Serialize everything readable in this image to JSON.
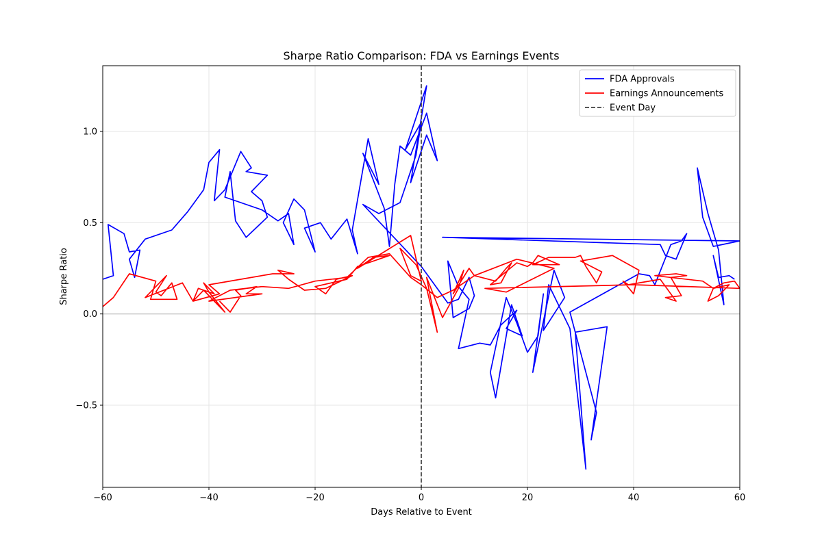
{
  "chart_data": {
    "type": "line",
    "title": "Sharpe Ratio Comparison: FDA vs Earnings Events",
    "xlabel": "Days Relative to Event",
    "ylabel": "Sharpe Ratio",
    "xlim": [
      -60,
      60
    ],
    "ylim": [
      -0.95,
      1.36
    ],
    "xticks": [
      -60,
      -40,
      -20,
      0,
      20,
      40,
      60
    ],
    "xtick_labels": [
      "−60",
      "−40",
      "−20",
      "0",
      "20",
      "40",
      "60"
    ],
    "yticks": [
      -0.5,
      0.0,
      0.5,
      1.0
    ],
    "ytick_labels": [
      "−0.5",
      "0.0",
      "0.5",
      "1.0"
    ],
    "grid": true,
    "legend_position": "top-right",
    "reference_lines": [
      {
        "type": "vertical",
        "x": 0,
        "label": "Event Day",
        "color": "#404040",
        "style": "dashed"
      },
      {
        "type": "horizontal",
        "y": 0,
        "color": "#bbbbbb",
        "style": "solid"
      }
    ],
    "series": [
      {
        "name": "FDA Approvals",
        "color": "#0000ff",
        "points": [
          [
            -60,
            0.19
          ],
          [
            -58,
            0.21
          ],
          [
            -59,
            0.49
          ],
          [
            -56,
            0.44
          ],
          [
            -55,
            0.34
          ],
          [
            -53,
            0.35
          ],
          [
            -54,
            0.2
          ],
          [
            -55,
            0.3
          ],
          [
            -52,
            0.41
          ],
          [
            -47,
            0.46
          ],
          [
            -44,
            0.56
          ],
          [
            -41,
            0.68
          ],
          [
            -40,
            0.83
          ],
          [
            -38,
            0.9
          ],
          [
            -39,
            0.62
          ],
          [
            -37,
            0.68
          ],
          [
            -34,
            0.89
          ],
          [
            -32,
            0.8
          ],
          [
            -33,
            0.78
          ],
          [
            -29,
            0.76
          ],
          [
            -32,
            0.67
          ],
          [
            -30,
            0.62
          ],
          [
            -29,
            0.53
          ],
          [
            -33,
            0.42
          ],
          [
            -35,
            0.51
          ],
          [
            -36,
            0.78
          ],
          [
            -37,
            0.64
          ],
          [
            -30,
            0.57
          ],
          [
            -27,
            0.51
          ],
          [
            -25,
            0.55
          ],
          [
            -24,
            0.38
          ],
          [
            -26,
            0.5
          ],
          [
            -24,
            0.63
          ],
          [
            -22,
            0.57
          ],
          [
            -20,
            0.34
          ],
          [
            -22,
            0.47
          ],
          [
            -19,
            0.5
          ],
          [
            -17,
            0.41
          ],
          [
            -14,
            0.52
          ],
          [
            -12,
            0.33
          ],
          [
            -13,
            0.46
          ],
          [
            -10,
            0.96
          ],
          [
            -8,
            0.71
          ],
          [
            -11,
            0.88
          ],
          [
            -7,
            0.58
          ],
          [
            -6,
            0.37
          ],
          [
            -5,
            0.71
          ],
          [
            -4,
            0.92
          ],
          [
            -2,
            0.87
          ],
          [
            1,
            1.1
          ],
          [
            3,
            0.84
          ],
          [
            1,
            0.98
          ],
          [
            -2,
            0.72
          ],
          [
            1,
            1.25
          ],
          [
            -3,
            0.9
          ],
          [
            0,
            1.05
          ],
          [
            -1,
            0.87
          ],
          [
            -4,
            0.61
          ],
          [
            -8,
            0.55
          ],
          [
            -11,
            0.6
          ],
          [
            0,
            0.26
          ],
          [
            5,
            0.06
          ],
          [
            7,
            0.08
          ],
          [
            9,
            0.2
          ],
          [
            10,
            0.1
          ],
          [
            9,
            0.03
          ],
          [
            6,
            -0.02
          ],
          [
            5,
            0.29
          ],
          [
            7,
            0.15
          ],
          [
            9,
            0.08
          ],
          [
            7,
            -0.19
          ],
          [
            11,
            -0.16
          ],
          [
            13,
            -0.17
          ],
          [
            15,
            -0.06
          ],
          [
            18,
            0.02
          ],
          [
            16,
            -0.08
          ],
          [
            19,
            -0.12
          ],
          [
            17,
            0.05
          ],
          [
            14,
            -0.46
          ],
          [
            13,
            -0.32
          ],
          [
            16,
            0.09
          ],
          [
            18,
            -0.05
          ],
          [
            20,
            -0.21
          ],
          [
            22,
            -0.12
          ],
          [
            23,
            0.11
          ],
          [
            21,
            -0.32
          ],
          [
            25,
            0.24
          ],
          [
            27,
            0.09
          ],
          [
            23,
            -0.09
          ],
          [
            24,
            0.16
          ],
          [
            26,
            0.04
          ],
          [
            28,
            -0.08
          ],
          [
            31,
            -0.85
          ],
          [
            29,
            -0.1
          ],
          [
            35,
            -0.07
          ],
          [
            32,
            -0.69
          ],
          [
            33,
            -0.54
          ],
          [
            28,
            0.01
          ],
          [
            41,
            0.22
          ],
          [
            43,
            0.21
          ],
          [
            44,
            0.16
          ],
          [
            47,
            0.38
          ],
          [
            49,
            0.4
          ],
          [
            50,
            0.44
          ],
          [
            48,
            0.3
          ],
          [
            46,
            0.32
          ],
          [
            45,
            0.38
          ],
          [
            4,
            0.42
          ],
          [
            60,
            0.4
          ],
          [
            55,
            0.37
          ],
          [
            53,
            0.53
          ],
          [
            52,
            0.8
          ],
          [
            54,
            0.55
          ],
          [
            56,
            0.35
          ],
          [
            57,
            0.05
          ],
          [
            55,
            0.32
          ],
          [
            56,
            0.2
          ],
          [
            58,
            0.21
          ],
          [
            59,
            0.19
          ]
        ]
      },
      {
        "name": "Earnings Announcements",
        "color": "#ff0000",
        "points": [
          [
            -60,
            0.04
          ],
          [
            -58,
            0.09
          ],
          [
            -55,
            0.22
          ],
          [
            -50,
            0.18
          ],
          [
            -51,
            0.08
          ],
          [
            -46,
            0.08
          ],
          [
            -47,
            0.17
          ],
          [
            -49,
            0.1
          ],
          [
            -50,
            0.12
          ],
          [
            -48,
            0.21
          ],
          [
            -52,
            0.09
          ],
          [
            -45,
            0.17
          ],
          [
            -43,
            0.07
          ],
          [
            -41,
            0.13
          ],
          [
            -37,
            0.01
          ],
          [
            -40,
            0.12
          ],
          [
            -41,
            0.17
          ],
          [
            -39,
            0.11
          ],
          [
            -42,
            0.14
          ],
          [
            -43,
            0.07
          ],
          [
            -38,
            0.11
          ],
          [
            -40,
            0.16
          ],
          [
            -28,
            0.22
          ],
          [
            -24,
            0.22
          ],
          [
            -27,
            0.24
          ],
          [
            -25,
            0.19
          ],
          [
            -22,
            0.13
          ],
          [
            -18,
            0.14
          ],
          [
            -13,
            0.21
          ],
          [
            -16,
            0.19
          ],
          [
            -18,
            0.11
          ],
          [
            -20,
            0.15
          ],
          [
            -14,
            0.19
          ],
          [
            -12,
            0.26
          ],
          [
            -8,
            0.3
          ],
          [
            -6,
            0.32
          ],
          [
            -9,
            0.31
          ],
          [
            -12,
            0.25
          ],
          [
            -2,
            0.43
          ],
          [
            0,
            0.18
          ],
          [
            -2,
            0.21
          ],
          [
            -4,
            0.36
          ],
          [
            -1,
            0.27
          ],
          [
            1,
            0.14
          ],
          [
            3,
            -0.1
          ],
          [
            1,
            0.2
          ],
          [
            4,
            -0.02
          ],
          [
            7,
            0.14
          ],
          [
            8,
            0.24
          ],
          [
            6,
            0.11
          ],
          [
            9,
            0.25
          ],
          [
            10,
            0.21
          ],
          [
            14,
            0.18
          ],
          [
            16,
            0.25
          ],
          [
            17,
            0.28
          ],
          [
            15,
            0.17
          ],
          [
            13,
            0.16
          ],
          [
            18,
            0.28
          ],
          [
            20,
            0.26
          ],
          [
            21,
            0.28
          ],
          [
            22,
            0.32
          ],
          [
            26,
            0.27
          ],
          [
            21,
            0.27
          ],
          [
            24,
            0.31
          ],
          [
            29,
            0.31
          ],
          [
            30,
            0.32
          ],
          [
            31,
            0.26
          ],
          [
            33,
            0.17
          ],
          [
            34,
            0.23
          ],
          [
            30,
            0.29
          ],
          [
            36,
            0.32
          ],
          [
            41,
            0.24
          ],
          [
            40,
            0.11
          ],
          [
            38,
            0.18
          ],
          [
            39,
            0.16
          ],
          [
            45,
            0.19
          ],
          [
            48,
            0.07
          ],
          [
            46,
            0.09
          ],
          [
            49,
            0.1
          ],
          [
            47,
            0.2
          ],
          [
            50,
            0.21
          ],
          [
            48,
            0.22
          ],
          [
            44,
            0.21
          ],
          [
            53,
            0.18
          ],
          [
            55,
            0.14
          ],
          [
            54,
            0.07
          ],
          [
            56,
            0.1
          ],
          [
            58,
            0.16
          ],
          [
            55,
            0.14
          ],
          [
            57,
            0.17
          ],
          [
            59,
            0.18
          ],
          [
            60,
            0.14
          ],
          [
            40,
            0.16
          ],
          [
            12,
            0.14
          ],
          [
            16,
            0.12
          ],
          [
            25,
            0.25
          ],
          [
            18,
            0.3
          ],
          [
            10,
            0.21
          ],
          [
            8,
            0.17
          ],
          [
            6,
            0.13
          ],
          [
            3,
            0.09
          ],
          [
            0,
            0.16
          ],
          [
            -2,
            0.2
          ],
          [
            -6,
            0.33
          ],
          [
            -10,
            0.31
          ],
          [
            -14,
            0.2
          ],
          [
            -20,
            0.18
          ],
          [
            -25,
            0.14
          ],
          [
            -30,
            0.15
          ],
          [
            -36,
            0.13
          ],
          [
            -38,
            0.1
          ],
          [
            -40,
            0.07
          ],
          [
            -30,
            0.11
          ],
          [
            -33,
            0.11
          ],
          [
            -31,
            0.15
          ],
          [
            -35,
            0.13
          ],
          [
            -34,
            0.1
          ],
          [
            -36,
            0.01
          ],
          [
            -38,
            0.07
          ]
        ]
      },
      {
        "name": "Event Day",
        "color": "#404040",
        "style": "dashed"
      }
    ]
  }
}
